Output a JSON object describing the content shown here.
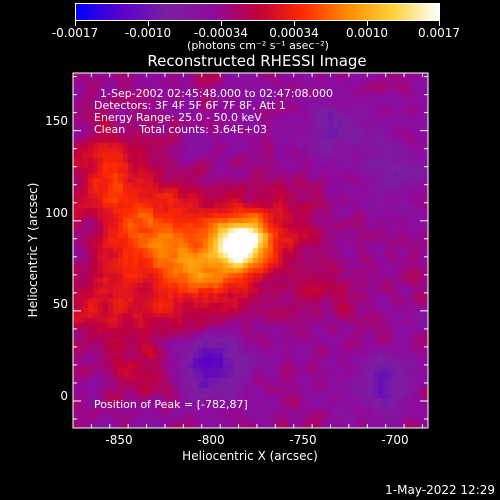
{
  "colorbar": {
    "tick_labels": [
      "-0.0017",
      "-0.0010",
      "-0.00034",
      "0.00034",
      "0.0010",
      "0.0017"
    ],
    "unit_label": "(photons cm⁻² s⁻¹ asec⁻²)",
    "colors": [
      "#0000ff",
      "#5a00c8",
      "#7a1fa2",
      "#8e0ba0",
      "#c0003c",
      "#ff2a00",
      "#ff8c00",
      "#ffd23c",
      "#ffffff"
    ]
  },
  "header": {
    "title": "Reconstructed RHESSI Image"
  },
  "info": {
    "time_range": "1-Sep-2002 02:45:48.000 to 02:47:08.000",
    "detectors": "Detectors: 3F 4F 5F 6F 7F 8F, Att 1",
    "energy": "Energy Range: 25.0 - 50.0 keV",
    "clean": "Clean    Total counts: 3.64E+03",
    "peak": "Position of Peak = [-782,87]"
  },
  "footer": {
    "date": "1-May-2022 12:29"
  },
  "chart_data": {
    "type": "heatmap",
    "title": "Reconstructed RHESSI Image",
    "xlabel": "Heliocentric X (arcsec)",
    "ylabel": "Heliocentric Y (arcsec)",
    "xlim": [
      -875,
      -682
    ],
    "ylim": [
      -15,
      182
    ],
    "x_ticks": [
      -850,
      -800,
      -750,
      -700
    ],
    "y_ticks": [
      0,
      50,
      100,
      150
    ],
    "x_tick_labels": [
      "-850",
      "-800",
      "-750",
      "-700"
    ],
    "y_tick_labels": [
      "0",
      "50",
      "100",
      "150"
    ],
    "colorbar_range": [
      -0.0017,
      0.0017
    ],
    "peak_position": [
      -782,
      87
    ],
    "sources": [
      {
        "x": -783,
        "y": 88,
        "sigma": 9,
        "value": 0.0017
      },
      {
        "x": -790,
        "y": 82,
        "sigma": 18,
        "value": 0.0009
      },
      {
        "x": -820,
        "y": 72,
        "sigma": 20,
        "value": 0.00075
      },
      {
        "x": -840,
        "y": 100,
        "sigma": 18,
        "value": 0.0007
      },
      {
        "x": -855,
        "y": 130,
        "sigma": 16,
        "value": 0.0006
      },
      {
        "x": -860,
        "y": 55,
        "sigma": 14,
        "value": 0.0005
      },
      {
        "x": -760,
        "y": 100,
        "sigma": 14,
        "value": 0.0004
      },
      {
        "x": -740,
        "y": 60,
        "sigma": 14,
        "value": 0.0003
      },
      {
        "x": -840,
        "y": 20,
        "sigma": 14,
        "value": 0.00035
      },
      {
        "x": -800,
        "y": 20,
        "sigma": 12,
        "value": -0.0009
      },
      {
        "x": -705,
        "y": 10,
        "sigma": 12,
        "value": -0.0006
      },
      {
        "x": -735,
        "y": 150,
        "sigma": 14,
        "value": -0.00045
      },
      {
        "x": -700,
        "y": 130,
        "sigma": 12,
        "value": -0.0004
      }
    ],
    "background_value": -0.00038,
    "noise_amplitude": 0.0002
  }
}
